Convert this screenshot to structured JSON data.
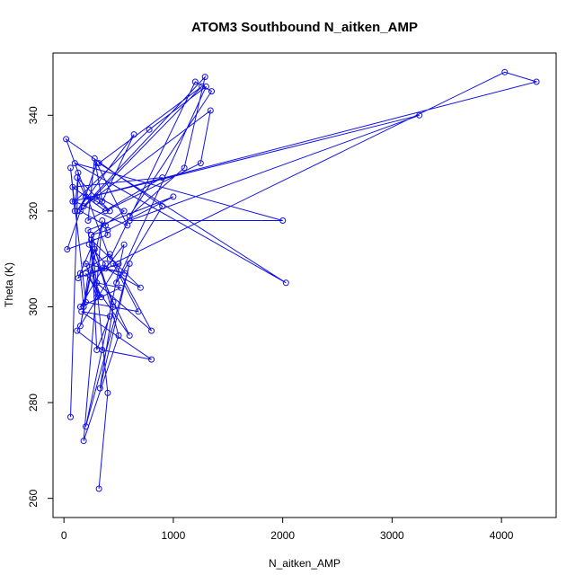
{
  "chart_data": {
    "type": "line",
    "title": "ATOM3 Southbound N_aitken_AMP",
    "xlabel": "N_aitken_AMP",
    "ylabel": "Theta (K)",
    "xlim": [
      -100,
      4500
    ],
    "ylim": [
      256,
      353
    ],
    "xticks": [
      0,
      1000,
      2000,
      3000,
      4000
    ],
    "yticks": [
      260,
      280,
      300,
      320,
      340
    ],
    "grid": false,
    "color": "#1010e8",
    "series": [
      {
        "x": [
          320,
          400,
          250,
          500,
          180,
          350,
          150,
          280,
          450,
          330,
          600,
          200,
          550,
          380,
          700,
          250,
          300,
          420,
          160,
          800,
          350,
          120,
          500,
          260,
          340,
          200,
          600,
          450,
          230,
          380,
          150,
          520,
          300,
          800,
          420,
          150,
          180,
          260,
          130,
          350,
          560,
          200,
          300,
          220,
          1000,
          400,
          250,
          550,
          300,
          200,
          120,
          420,
          300,
          200,
          120,
          640,
          350,
          280,
          220,
          900,
          80,
          380,
          1250,
          1340,
          180,
          1290,
          1100,
          600,
          1350,
          1200,
          420,
          20,
          900,
          480,
          1300,
          780,
          100,
          580,
          300,
          30,
          400,
          380,
          150,
          1260,
          320,
          2030,
          100,
          2000,
          600,
          3250,
          80,
          4320,
          4030,
          450,
          680,
          200,
          60,
          100,
          130,
          60
        ],
        "y": [
          262,
          282,
          315,
          294,
          272,
          318,
          296,
          312,
          300,
          283,
          309,
          275,
          313,
          308,
          304,
          314,
          291,
          298,
          299,
          289,
          291,
          295,
          309,
          307,
          302,
          307,
          294,
          301,
          313,
          309,
          300,
          304,
          305,
          295,
          311,
          307,
          300,
          313,
          306,
          308,
          307,
          309,
          302,
          316,
          323,
          316,
          315,
          320,
          323,
          323,
          327,
          320,
          322,
          323,
          320,
          336,
          322,
          331,
          318,
          327,
          325,
          320,
          330,
          341,
          321,
          348,
          329,
          319,
          345,
          347,
          310,
          335,
          321,
          305,
          346,
          337,
          322,
          317,
          330,
          312,
          315,
          317,
          320,
          346,
          330,
          305,
          330,
          318,
          318,
          340,
          322,
          347,
          349,
          309,
          299,
          301,
          329,
          320,
          328,
          277
        ]
      }
    ]
  }
}
